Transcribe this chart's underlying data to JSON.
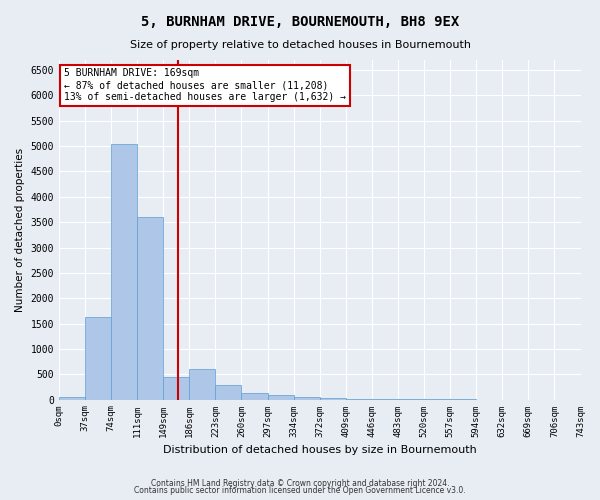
{
  "title": "5, BURNHAM DRIVE, BOURNEMOUTH, BH8 9EX",
  "subtitle": "Size of property relative to detached houses in Bournemouth",
  "xlabel": "Distribution of detached houses by size in Bournemouth",
  "ylabel": "Number of detached properties",
  "footer1": "Contains HM Land Registry data © Crown copyright and database right 2024.",
  "footer2": "Contains public sector information licensed under the Open Government Licence v3.0.",
  "bin_labels": [
    "0sqm",
    "37sqm",
    "74sqm",
    "111sqm",
    "149sqm",
    "186sqm",
    "223sqm",
    "260sqm",
    "297sqm",
    "334sqm",
    "372sqm",
    "409sqm",
    "446sqm",
    "483sqm",
    "520sqm",
    "557sqm",
    "594sqm",
    "632sqm",
    "669sqm",
    "706sqm",
    "743sqm"
  ],
  "bar_values": [
    50,
    1620,
    5050,
    3600,
    450,
    600,
    280,
    130,
    90,
    50,
    30,
    20,
    10,
    5,
    3,
    2,
    1,
    1,
    0,
    0
  ],
  "bar_color": "#aec6e8",
  "bar_edge_color": "#5a9fd4",
  "vline_x": 4.57,
  "vline_color": "#cc0000",
  "annotation_text": "5 BURNHAM DRIVE: 169sqm\n← 87% of detached houses are smaller (11,208)\n13% of semi-detached houses are larger (1,632) →",
  "annotation_box_color": "#cc0000",
  "ylim": [
    0,
    6700
  ],
  "yticks": [
    0,
    500,
    1000,
    1500,
    2000,
    2500,
    3000,
    3500,
    4000,
    4500,
    5000,
    5500,
    6000,
    6500
  ],
  "bg_color": "#e8edf4",
  "plot_bg_color": "#e8edf4",
  "grid_color": "#ffffff"
}
